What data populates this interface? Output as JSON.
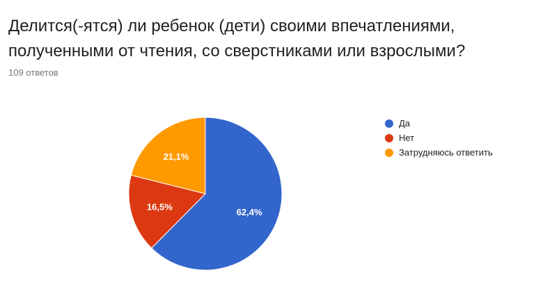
{
  "question": {
    "title": "Делится(-ятся) ли ребенок (дети) своими впечатлениями, полученными от чтения, со сверстниками или взрослыми?",
    "response_count": "109 ответов"
  },
  "chart_data": {
    "type": "pie",
    "title": "",
    "slices": [
      {
        "label": "Да",
        "value": 62.4,
        "value_label": "62,4%",
        "color": "#3366cc"
      },
      {
        "label": "Нет",
        "value": 16.5,
        "value_label": "16,5%",
        "color": "#dc3912"
      },
      {
        "label": "Затрудняюсь ответить",
        "value": 21.1,
        "value_label": "21,1%",
        "color": "#ff9900"
      }
    ],
    "start_angle_deg": 90,
    "legend_position": "right"
  }
}
